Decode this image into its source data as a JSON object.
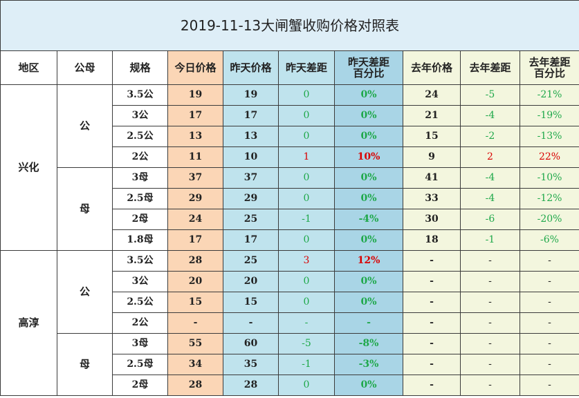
{
  "title": "2019-11-13大闸蟹收购价格对照表",
  "headers": {
    "region": "地区",
    "sex": "公母",
    "spec": "规格",
    "today": "今日价格",
    "yesterday": "昨天价格",
    "diff": "昨天差距",
    "diff_pct_line1": "昨天差距",
    "diff_pct_line2": "百分比",
    "last_year": "去年价格",
    "ly_diff": "去年差距",
    "ly_pct_line1": "去年差距",
    "ly_pct_line2": "百分比"
  },
  "groups": {
    "xinghua": "兴化",
    "gaochun": "高淳",
    "male": "公",
    "female": "母"
  },
  "rows": [
    {
      "spec": "3.5公",
      "today": "19",
      "yesterday": "19",
      "diff": "0",
      "pct": "0%",
      "ly": "24",
      "ly_diff": "-5",
      "ly_pct": "-21%"
    },
    {
      "spec": "3公",
      "today": "17",
      "yesterday": "17",
      "diff": "0",
      "pct": "0%",
      "ly": "21",
      "ly_diff": "-4",
      "ly_pct": "-19%"
    },
    {
      "spec": "2.5公",
      "today": "13",
      "yesterday": "13",
      "diff": "0",
      "pct": "0%",
      "ly": "15",
      "ly_diff": "-2",
      "ly_pct": "-13%"
    },
    {
      "spec": "2公",
      "today": "11",
      "yesterday": "10",
      "diff": "1",
      "pct": "10%",
      "ly": "9",
      "ly_diff": "2",
      "ly_pct": "22%"
    },
    {
      "spec": "3母",
      "today": "37",
      "yesterday": "37",
      "diff": "0",
      "pct": "0%",
      "ly": "41",
      "ly_diff": "-4",
      "ly_pct": "-10%"
    },
    {
      "spec": "2.5母",
      "today": "29",
      "yesterday": "29",
      "diff": "0",
      "pct": "0%",
      "ly": "33",
      "ly_diff": "-4",
      "ly_pct": "-12%"
    },
    {
      "spec": "2母",
      "today": "24",
      "yesterday": "25",
      "diff": "-1",
      "pct": "-4%",
      "ly": "30",
      "ly_diff": "-6",
      "ly_pct": "-20%"
    },
    {
      "spec": "1.8母",
      "today": "17",
      "yesterday": "17",
      "diff": "0",
      "pct": "0%",
      "ly": "18",
      "ly_diff": "-1",
      "ly_pct": "-6%"
    },
    {
      "spec": "3.5公",
      "today": "28",
      "yesterday": "25",
      "diff": "3",
      "pct": "12%",
      "ly": "-",
      "ly_diff": "-",
      "ly_pct": "-"
    },
    {
      "spec": "3公",
      "today": "20",
      "yesterday": "20",
      "diff": "0",
      "pct": "0%",
      "ly": "-",
      "ly_diff": "-",
      "ly_pct": "-"
    },
    {
      "spec": "2.5公",
      "today": "15",
      "yesterday": "15",
      "diff": "0",
      "pct": "0%",
      "ly": "-",
      "ly_diff": "-",
      "ly_pct": "-"
    },
    {
      "spec": "2公",
      "today": "-",
      "yesterday": "-",
      "diff": "-",
      "pct": "-",
      "ly": "-",
      "ly_diff": "-",
      "ly_pct": "-"
    },
    {
      "spec": "3母",
      "today": "55",
      "yesterday": "60",
      "diff": "-5",
      "pct": "-8%",
      "ly": "-",
      "ly_diff": "-",
      "ly_pct": "-"
    },
    {
      "spec": "2.5母",
      "today": "34",
      "yesterday": "35",
      "diff": "-1",
      "pct": "-3%",
      "ly": "-",
      "ly_diff": "-",
      "ly_pct": "-"
    },
    {
      "spec": "2母",
      "today": "28",
      "yesterday": "28",
      "diff": "0",
      "pct": "0%",
      "ly": "-",
      "ly_diff": "-",
      "ly_pct": "-"
    }
  ],
  "colors": {
    "positive": "#d90000",
    "non_positive": "#1fa84a"
  }
}
